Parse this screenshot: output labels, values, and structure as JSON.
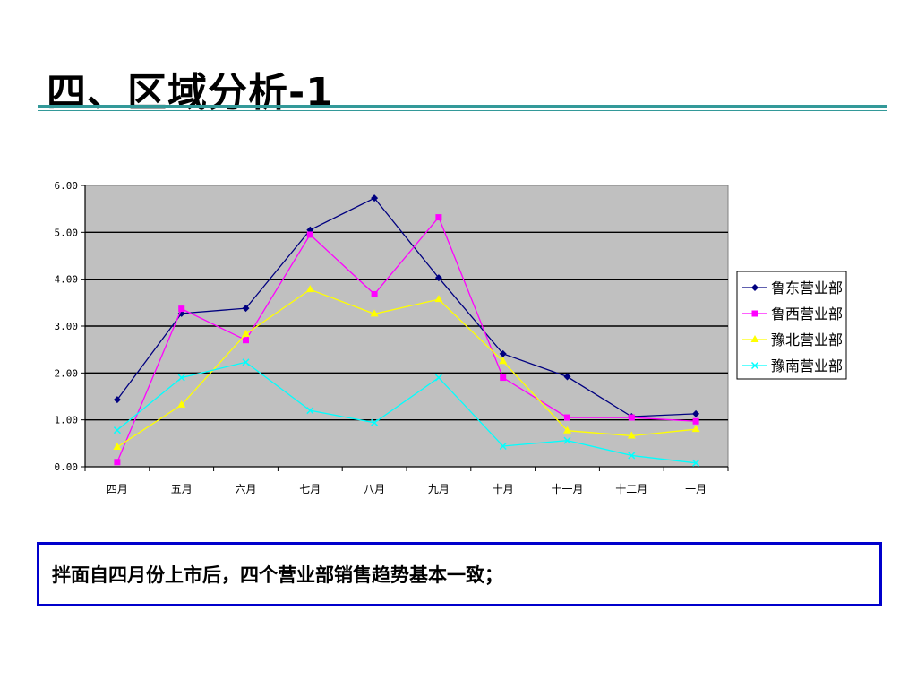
{
  "slide": {
    "title": "四、区域分析-1",
    "summary": "拌面自四月份上市后，四个营业部销售趋势基本一致；"
  },
  "colors": {
    "plot_bg": "#c0c0c0",
    "rule": "#339999",
    "box_border": "#0000cc"
  },
  "chart_data": {
    "type": "line",
    "title": "",
    "xlabel": "",
    "ylabel": "",
    "categories": [
      "四月",
      "五月",
      "六月",
      "七月",
      "八月",
      "九月",
      "十月",
      "十一月",
      "十二月",
      "一月"
    ],
    "ylim": [
      0,
      6
    ],
    "yticks": [
      "0.00",
      "1.00",
      "2.00",
      "3.00",
      "4.00",
      "5.00",
      "6.00"
    ],
    "grid": "horizontal",
    "legend_position": "right",
    "series": [
      {
        "name": "鲁东营业部",
        "color": "#000080",
        "marker": "diamond",
        "values": [
          1.43,
          3.27,
          3.38,
          5.05,
          5.73,
          4.03,
          2.41,
          1.92,
          1.07,
          1.13
        ]
      },
      {
        "name": "鲁西营业部",
        "color": "#ff00ff",
        "marker": "square",
        "values": [
          0.1,
          3.37,
          2.7,
          4.95,
          3.68,
          5.32,
          1.9,
          1.05,
          1.05,
          0.97
        ]
      },
      {
        "name": "豫北营业部",
        "color": "#ffff00",
        "marker": "triangle",
        "values": [
          0.42,
          1.32,
          2.83,
          3.78,
          3.26,
          3.57,
          2.25,
          0.77,
          0.66,
          0.8
        ]
      },
      {
        "name": "豫南营业部",
        "color": "#00ffff",
        "marker": "x",
        "values": [
          0.78,
          1.9,
          2.23,
          1.2,
          0.94,
          1.9,
          0.44,
          0.56,
          0.24,
          0.08
        ]
      }
    ]
  }
}
